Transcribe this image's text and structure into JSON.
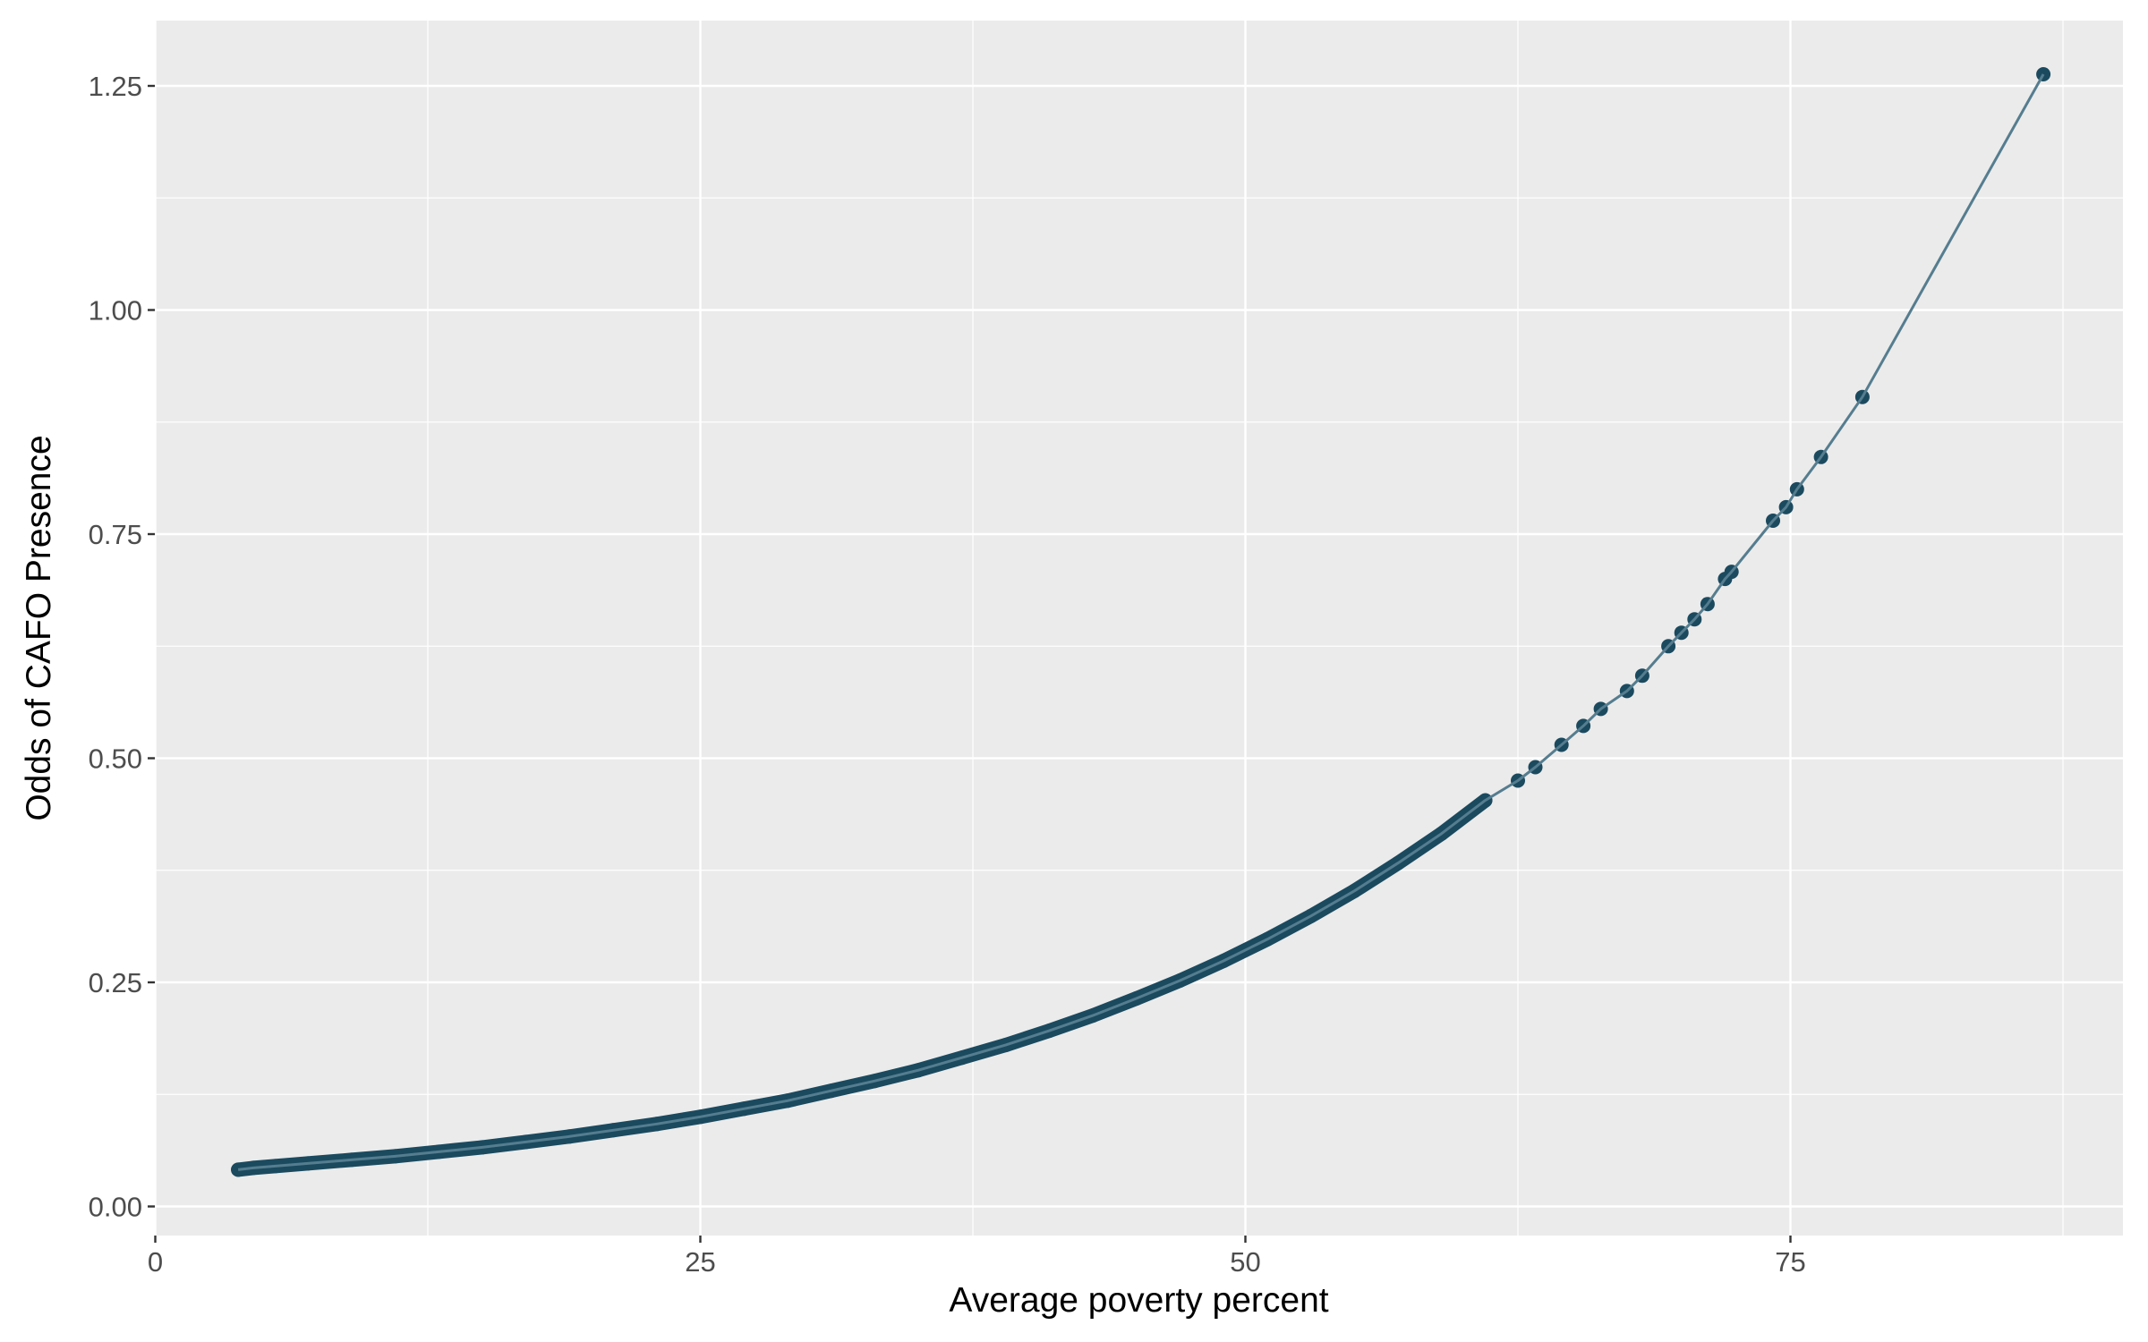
{
  "chart_data": {
    "type": "line",
    "title": "",
    "xlabel": "Average poverty percent",
    "ylabel": "Odds of CAFO Presence",
    "xlim": [
      0,
      90
    ],
    "ylim": [
      0,
      1.3
    ],
    "x_ticks": [
      0,
      25,
      50,
      75
    ],
    "x_tick_labels": [
      "0",
      "25",
      "50",
      "75"
    ],
    "y_ticks": [
      0,
      0.25,
      0.5,
      0.75,
      1.0,
      1.25
    ],
    "y_tick_labels": [
      "0.00",
      "0.25",
      "0.50",
      "0.75",
      "1.00",
      "1.25"
    ],
    "grid": true,
    "legend": "none",
    "series": [
      {
        "x": [
          3.8,
          4.5,
          5.5,
          7,
          9,
          11,
          13,
          15,
          17,
          19,
          21,
          23,
          25,
          27,
          29,
          31,
          33,
          35,
          37,
          39,
          41,
          43,
          45,
          47,
          49,
          51,
          53,
          55,
          57,
          59,
          61,
          62.5,
          63.3,
          64.5,
          65.5,
          66.3,
          67.5,
          68.2,
          69.4,
          70,
          70.6,
          71.2,
          72,
          72.3,
          74.2,
          74.8,
          75.3,
          76.4,
          78.3,
          86.6
        ],
        "y": [
          0.041,
          0.043,
          0.045,
          0.048,
          0.052,
          0.056,
          0.061,
          0.066,
          0.072,
          0.078,
          0.085,
          0.092,
          0.1,
          0.109,
          0.118,
          0.129,
          0.14,
          0.152,
          0.166,
          0.18,
          0.196,
          0.213,
          0.232,
          0.252,
          0.274,
          0.298,
          0.324,
          0.352,
          0.383,
          0.416,
          0.453,
          0.475,
          0.49,
          0.515,
          0.536,
          0.555,
          0.575,
          0.592,
          0.625,
          0.64,
          0.655,
          0.672,
          0.7,
          0.708,
          0.765,
          0.78,
          0.8,
          0.836,
          0.903,
          1.263
        ]
      }
    ],
    "colors": {
      "point": "#1b4a5f",
      "line": "#557d8f",
      "panel_background": "#ebebeb",
      "grid": "#ffffff",
      "tick_label": "#4d4d4d",
      "axis_title": "#000000"
    }
  }
}
